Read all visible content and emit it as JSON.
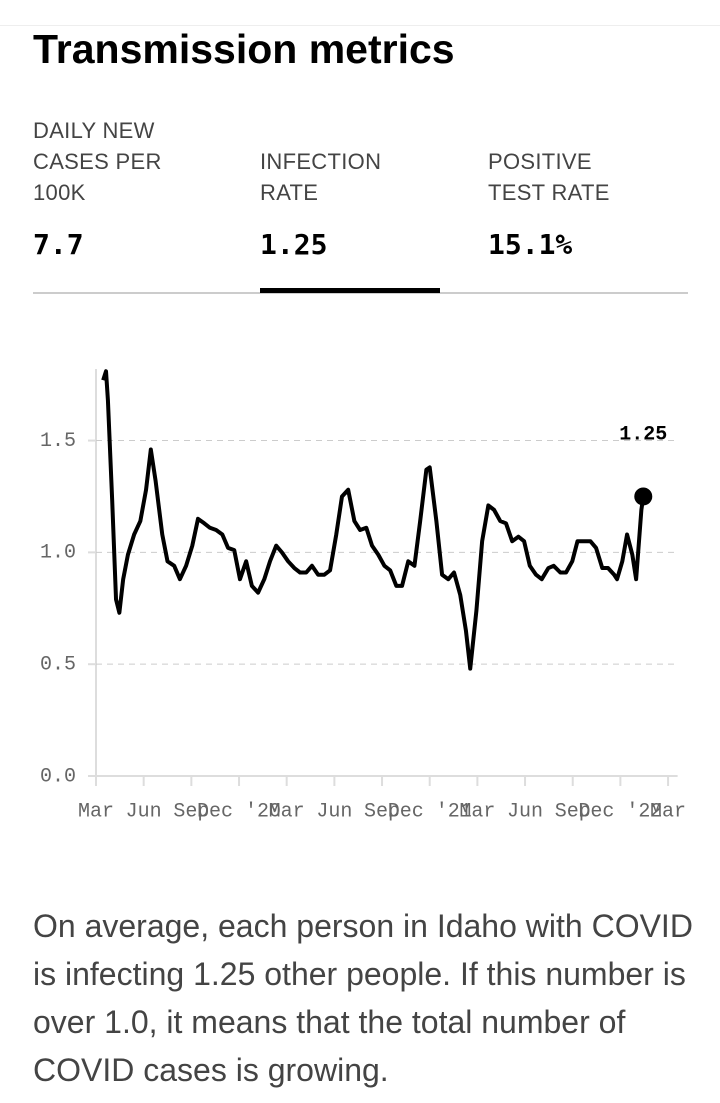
{
  "header": {
    "title": "Transmission metrics"
  },
  "tabs": [
    {
      "label": "DAILY NEW CASES PER 100K",
      "value": "7.7"
    },
    {
      "label": "INFECTION RATE",
      "value": "1.25"
    },
    {
      "label": "POSITIVE TEST RATE",
      "value": "15.1%"
    }
  ],
  "active_tab": 1,
  "chart_data": {
    "type": "line",
    "x": [
      0.15,
      0.21,
      0.25,
      0.34,
      0.42,
      0.49,
      0.57,
      0.67,
      0.8,
      0.93,
      1.05,
      1.15,
      1.25,
      1.39,
      1.5,
      1.64,
      1.76,
      1.89,
      2.02,
      2.14,
      2.27,
      2.39,
      2.52,
      2.65,
      2.77,
      2.9,
      3.02,
      3.15,
      3.27,
      3.4,
      3.53,
      3.65,
      3.78,
      3.9,
      4.03,
      4.16,
      4.28,
      4.41,
      4.53,
      4.66,
      4.79,
      4.91,
      5.04,
      5.16,
      5.29,
      5.42,
      5.54,
      5.67,
      5.79,
      5.92,
      6.05,
      6.17,
      6.3,
      6.42,
      6.55,
      6.68,
      6.8,
      6.93,
      7.0,
      7.14,
      7.26,
      7.39,
      7.51,
      7.64,
      7.76,
      7.85,
      7.98,
      8.1,
      8.23,
      8.35,
      8.48,
      8.6,
      8.73,
      8.86,
      8.98,
      9.1,
      9.23,
      9.35,
      9.49,
      9.6,
      9.74,
      9.86,
      9.99,
      10.1,
      10.24,
      10.37,
      10.49,
      10.62,
      10.74,
      10.87,
      10.93,
      11.04,
      11.14,
      11.25,
      11.33,
      11.44,
      11.48
    ],
    "series": [
      {
        "color": "#000000",
        "values": [
          1.77,
          1.81,
          1.68,
          1.23,
          0.79,
          0.73,
          0.88,
          0.99,
          1.08,
          1.14,
          1.28,
          1.46,
          1.32,
          1.08,
          0.96,
          0.94,
          0.88,
          0.94,
          1.03,
          1.15,
          1.13,
          1.11,
          1.1,
          1.08,
          1.02,
          1.01,
          0.88,
          0.96,
          0.85,
          0.82,
          0.88,
          0.96,
          1.03,
          1.0,
          0.96,
          0.93,
          0.91,
          0.91,
          0.94,
          0.9,
          0.9,
          0.92,
          1.08,
          1.25,
          1.28,
          1.14,
          1.1,
          1.11,
          1.03,
          0.99,
          0.94,
          0.92,
          0.85,
          0.85,
          0.96,
          0.94,
          1.14,
          1.37,
          1.38,
          1.14,
          0.9,
          0.88,
          0.91,
          0.81,
          0.65,
          0.48,
          0.74,
          1.05,
          1.21,
          1.19,
          1.14,
          1.13,
          1.05,
          1.07,
          1.05,
          0.94,
          0.9,
          0.88,
          0.93,
          0.94,
          0.91,
          0.91,
          0.96,
          1.05,
          1.05,
          1.05,
          1.02,
          0.93,
          0.93,
          0.9,
          0.88,
          0.96,
          1.08,
          0.99,
          0.88,
          1.19,
          1.25
        ]
      }
    ],
    "annotation": "1.25",
    "xlim": [
      0,
      12.2
    ],
    "xticks": [
      {
        "value": 0,
        "label": "Mar"
      },
      {
        "value": 1,
        "label": "Jun"
      },
      {
        "value": 2,
        "label": "Sep"
      },
      {
        "value": 3,
        "label": "Dec '20"
      },
      {
        "value": 4,
        "label": "Mar"
      },
      {
        "value": 5,
        "label": "Jun"
      },
      {
        "value": 6,
        "label": "Sep"
      },
      {
        "value": 7,
        "label": "Dec '21"
      },
      {
        "value": 8,
        "label": "Mar"
      },
      {
        "value": 9,
        "label": "Jun"
      },
      {
        "value": 10,
        "label": "Sep"
      },
      {
        "value": 11,
        "label": "Dec '22"
      },
      {
        "value": 12,
        "label": "Mar"
      }
    ],
    "ylim": [
      0,
      1.82
    ],
    "yticks": [
      {
        "value": 0,
        "label": "0.0"
      },
      0.5,
      {
        "value": 1,
        "label": "1.0"
      },
      1.5
    ],
    "grid": true
  },
  "description": "On average, each person in Idaho with COVID is infecting 1.25 other people. If this number is over 1.0, it means that the total number of COVID cases is growing."
}
